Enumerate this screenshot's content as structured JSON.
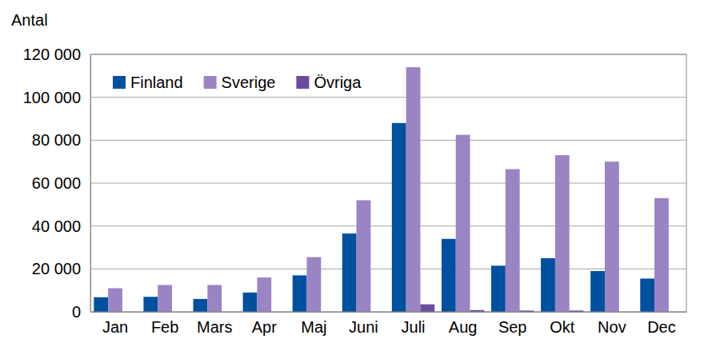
{
  "chart_data": {
    "type": "bar",
    "y_label": "Antal",
    "categories": [
      "Jan",
      "Feb",
      "Mars",
      "Apr",
      "Maj",
      "Juni",
      "Juli",
      "Aug",
      "Sep",
      "Okt",
      "Nov",
      "Dec"
    ],
    "series": [
      {
        "name": "Finland",
        "color": "#0050a0",
        "values": [
          6800,
          7000,
          6000,
          9000,
          17000,
          36500,
          88000,
          34000,
          21500,
          25000,
          19000,
          15500
        ]
      },
      {
        "name": "Sverige",
        "color": "#9a84c3",
        "values": [
          11000,
          12500,
          12500,
          16000,
          25500,
          52000,
          114000,
          82500,
          66500,
          73000,
          70000,
          53000
        ]
      },
      {
        "name": "Övriga",
        "color": "#6b4d9e",
        "values": [
          0,
          0,
          0,
          0,
          0,
          0,
          3500,
          800,
          600,
          600,
          0,
          0
        ]
      }
    ],
    "ylim": [
      0,
      120000
    ],
    "yticks": [
      0,
      {
        "value": 20000,
        "label": "20 000"
      },
      {
        "value": 40000,
        "label": "40 000"
      },
      {
        "value": 60000,
        "label": "60 000"
      },
      {
        "value": 80000,
        "label": "80 000"
      },
      {
        "value": 100000,
        "label": "100 000"
      },
      {
        "value": 120000,
        "label": "120 000"
      }
    ],
    "grid": true,
    "legend": "top-left"
  }
}
